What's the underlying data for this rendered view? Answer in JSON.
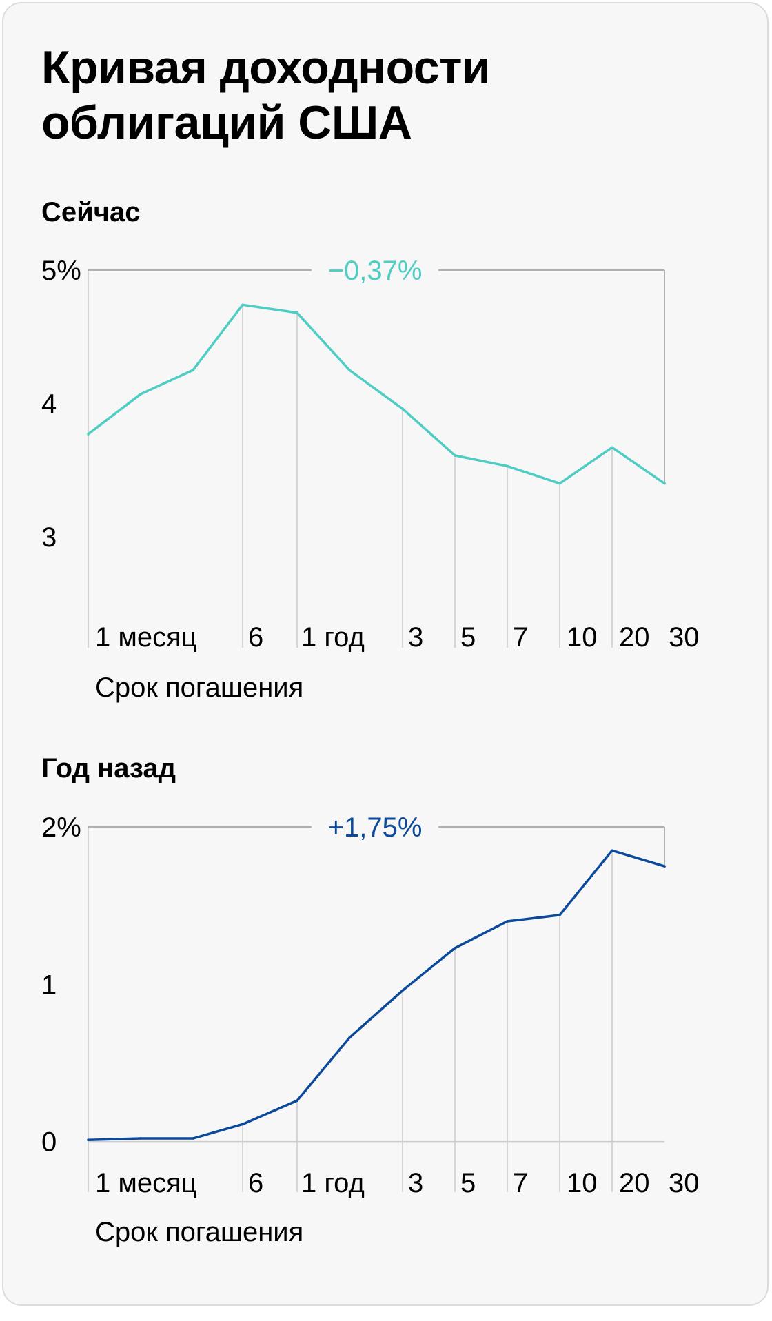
{
  "title": "Кривая доходности облигаций США",
  "colors": {
    "now": "#4ecdc4",
    "year_ago": "#0b4a9a",
    "grid": "#cccccc",
    "frame": "#9a9a9a",
    "text": "#000000"
  },
  "chart_data": [
    {
      "type": "line",
      "title": "Сейчас",
      "xlabel": "Срок погашения",
      "categories": [
        "1 месяц",
        "",
        "",
        "6",
        "",
        "1 год",
        "3",
        "5",
        "7",
        "10",
        "20",
        "30"
      ],
      "ytick_labels": [
        "5%",
        "4",
        "3"
      ],
      "yticks": [
        5,
        4,
        3
      ],
      "ylim": [
        2.7,
        5
      ],
      "annotation": "−0,37%",
      "series": [
        {
          "values": [
            3.77,
            4.07,
            4.25,
            4.74,
            4.68,
            4.25,
            3.96,
            3.61,
            3.53,
            3.4,
            3.67,
            3.4
          ]
        }
      ]
    },
    {
      "type": "line",
      "title": "Год назад",
      "xlabel": "Срок погашения",
      "categories": [
        "1 месяц",
        "",
        "",
        "6",
        "",
        "1 год",
        "3",
        "5",
        "7",
        "10",
        "20",
        "30"
      ],
      "ytick_labels": [
        "2%",
        "1",
        "0"
      ],
      "yticks": [
        2,
        1,
        0
      ],
      "ylim": [
        -0.05,
        2
      ],
      "annotation": "+1,75%",
      "series": [
        {
          "values": [
            0.01,
            0.02,
            0.02,
            0.11,
            0.26,
            0.66,
            0.96,
            1.23,
            1.4,
            1.44,
            1.85,
            1.75
          ]
        }
      ]
    }
  ]
}
